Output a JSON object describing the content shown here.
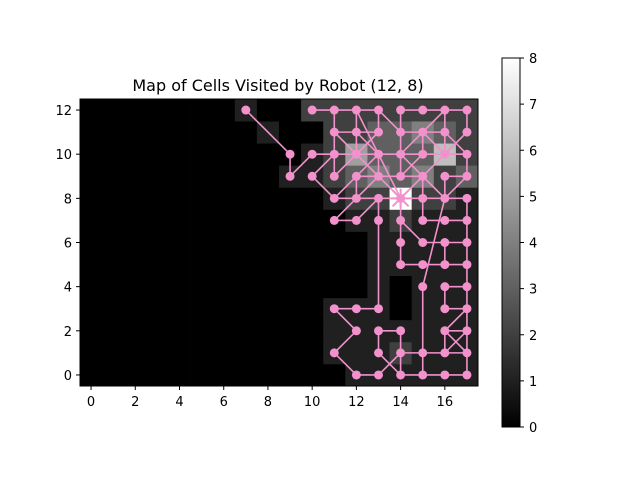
{
  "chart_data": {
    "type": "heatmap",
    "title": "Map of Cells Visited by Robot (12, 8)",
    "xlabel": "",
    "ylabel": "",
    "xlim": [
      -0.5,
      17.5
    ],
    "ylim": [
      -0.5,
      12.5
    ],
    "x_ticks": [
      0,
      2,
      4,
      6,
      8,
      10,
      12,
      14,
      16
    ],
    "y_ticks": [
      0,
      2,
      4,
      6,
      8,
      10,
      12
    ],
    "colorbar": {
      "min": 0,
      "max": 8,
      "ticks": [
        0,
        1,
        2,
        3,
        4,
        5,
        6,
        7,
        8
      ],
      "colormap": "gray"
    },
    "grid": false,
    "visit_counts": [
      [
        0,
        0,
        0,
        0,
        0,
        0,
        0,
        0,
        0,
        0,
        0,
        0,
        1,
        1,
        1,
        1,
        1,
        1
      ],
      [
        0,
        0,
        0,
        0,
        0,
        0,
        0,
        0,
        0,
        0,
        0,
        1,
        1,
        1,
        2,
        1,
        1,
        1
      ],
      [
        0,
        0,
        0,
        0,
        0,
        0,
        0,
        0,
        0,
        0,
        0,
        1,
        1,
        1,
        1,
        1,
        1,
        1
      ],
      [
        0,
        0,
        0,
        0,
        0,
        0,
        0,
        0,
        0,
        0,
        0,
        1,
        1,
        1,
        0,
        1,
        1,
        1
      ],
      [
        0,
        0,
        0,
        0,
        0,
        0,
        0,
        0,
        0,
        0,
        0,
        0,
        0,
        1,
        0,
        1,
        1,
        1
      ],
      [
        0,
        0,
        0,
        0,
        0,
        0,
        0,
        0,
        0,
        0,
        0,
        0,
        0,
        1,
        1,
        1,
        1,
        1
      ],
      [
        0,
        0,
        0,
        0,
        0,
        0,
        0,
        0,
        0,
        0,
        0,
        0,
        0,
        1,
        1,
        1,
        1,
        1
      ],
      [
        0,
        0,
        0,
        0,
        0,
        0,
        0,
        0,
        0,
        0,
        0,
        0,
        1,
        1,
        2,
        1,
        1,
        1
      ],
      [
        0,
        0,
        0,
        0,
        0,
        0,
        0,
        0,
        0,
        0,
        0,
        1,
        2,
        2,
        8,
        2,
        2,
        1
      ],
      [
        0,
        0,
        0,
        0,
        0,
        0,
        0,
        0,
        0,
        1,
        1,
        2,
        3,
        4,
        3,
        4,
        2,
        3
      ],
      [
        0,
        0,
        0,
        0,
        0,
        0,
        0,
        0,
        0,
        0,
        1,
        2,
        5,
        3,
        3,
        3,
        6,
        2
      ],
      [
        0,
        0,
        0,
        0,
        0,
        0,
        0,
        0,
        1,
        0,
        0,
        2,
        2,
        3,
        3,
        4,
        3,
        2
      ],
      [
        0,
        0,
        0,
        0,
        0,
        0,
        0,
        1,
        0,
        0,
        2,
        2,
        2,
        2,
        2,
        2,
        2,
        2
      ]
    ],
    "path": [
      [
        7,
        12
      ],
      [
        9,
        10
      ],
      [
        9,
        9
      ],
      [
        10,
        10
      ],
      [
        11,
        10
      ],
      [
        11,
        12
      ],
      [
        10,
        12
      ],
      [
        12,
        12
      ],
      [
        12,
        11
      ],
      [
        12,
        10
      ],
      [
        11,
        10
      ],
      [
        11,
        11
      ],
      [
        12,
        11
      ],
      [
        13,
        10
      ],
      [
        13,
        9
      ],
      [
        12,
        8
      ],
      [
        11,
        8
      ],
      [
        12,
        9
      ],
      [
        13,
        9
      ],
      [
        13,
        10
      ],
      [
        12,
        10
      ],
      [
        13,
        11
      ],
      [
        13,
        12
      ],
      [
        14,
        11
      ],
      [
        14,
        12
      ],
      [
        15,
        12
      ],
      [
        16,
        12
      ],
      [
        17,
        12
      ],
      [
        17,
        11
      ],
      [
        16,
        10
      ],
      [
        15,
        10
      ],
      [
        15,
        11
      ],
      [
        14,
        11
      ],
      [
        14,
        10
      ],
      [
        15,
        9
      ],
      [
        16,
        10
      ],
      [
        16,
        11
      ],
      [
        16,
        12
      ],
      [
        15,
        11
      ],
      [
        16,
        10
      ],
      [
        17,
        10
      ],
      [
        17,
        9
      ],
      [
        16,
        8
      ],
      [
        15,
        9
      ],
      [
        14,
        8
      ],
      [
        13,
        9
      ],
      [
        12,
        8
      ],
      [
        11,
        7
      ],
      [
        12,
        7
      ],
      [
        13,
        8
      ],
      [
        13,
        7
      ],
      [
        13,
        3
      ],
      [
        12,
        3
      ],
      [
        11,
        3
      ],
      [
        12,
        2
      ],
      [
        11,
        1
      ],
      [
        12,
        0
      ],
      [
        13,
        0
      ],
      [
        14,
        1
      ],
      [
        14,
        2
      ],
      [
        13,
        2
      ],
      [
        13,
        1
      ],
      [
        14,
        0
      ],
      [
        15,
        0
      ],
      [
        16,
        0
      ],
      [
        17,
        0
      ],
      [
        17,
        1
      ],
      [
        16,
        2
      ],
      [
        17,
        3
      ],
      [
        16,
        3
      ],
      [
        16,
        4
      ],
      [
        17,
        4
      ],
      [
        17,
        5
      ],
      [
        16,
        5
      ],
      [
        16,
        6
      ],
      [
        17,
        6
      ],
      [
        17,
        7
      ],
      [
        16,
        7
      ],
      [
        15,
        7
      ],
      [
        15,
        8
      ],
      [
        14,
        8
      ],
      [
        14,
        7
      ],
      [
        14,
        6
      ],
      [
        14,
        5
      ],
      [
        15,
        5
      ],
      [
        16,
        5
      ],
      [
        16,
        6
      ],
      [
        15,
        6
      ],
      [
        14,
        7
      ],
      [
        14,
        8
      ],
      [
        15,
        8
      ],
      [
        15,
        9
      ],
      [
        14,
        9
      ],
      [
        14,
        10
      ],
      [
        13,
        10
      ],
      [
        12,
        9
      ],
      [
        12,
        8
      ],
      [
        13,
        8
      ],
      [
        14,
        8
      ],
      [
        16,
        8
      ],
      [
        15,
        4
      ],
      [
        15,
        0
      ],
      [
        14,
        0
      ],
      [
        14,
        1
      ],
      [
        15,
        1
      ],
      [
        16,
        1
      ],
      [
        17,
        2
      ],
      [
        16,
        2
      ],
      [
        16,
        1
      ],
      [
        17,
        1
      ],
      [
        17,
        8
      ],
      [
        16,
        8
      ],
      [
        16,
        9
      ],
      [
        17,
        9
      ],
      [
        17,
        10
      ],
      [
        16,
        11
      ],
      [
        15,
        11
      ],
      [
        14,
        10
      ],
      [
        15,
        10
      ],
      [
        14,
        9
      ],
      [
        13,
        9
      ],
      [
        12,
        10
      ],
      [
        11,
        9
      ],
      [
        11,
        10
      ],
      [
        10,
        9
      ],
      [
        11,
        8
      ],
      [
        12,
        8
      ],
      [
        14,
        8
      ],
      [
        12,
        12
      ],
      [
        13,
        12
      ],
      [
        13,
        11
      ],
      [
        12,
        11
      ],
      [
        11,
        11
      ],
      [
        12,
        10
      ],
      [
        13,
        10
      ],
      [
        14,
        10
      ],
      [
        14,
        11
      ]
    ],
    "highlight_cell": [
      14,
      8
    ],
    "path_color": "#f291cc"
  }
}
